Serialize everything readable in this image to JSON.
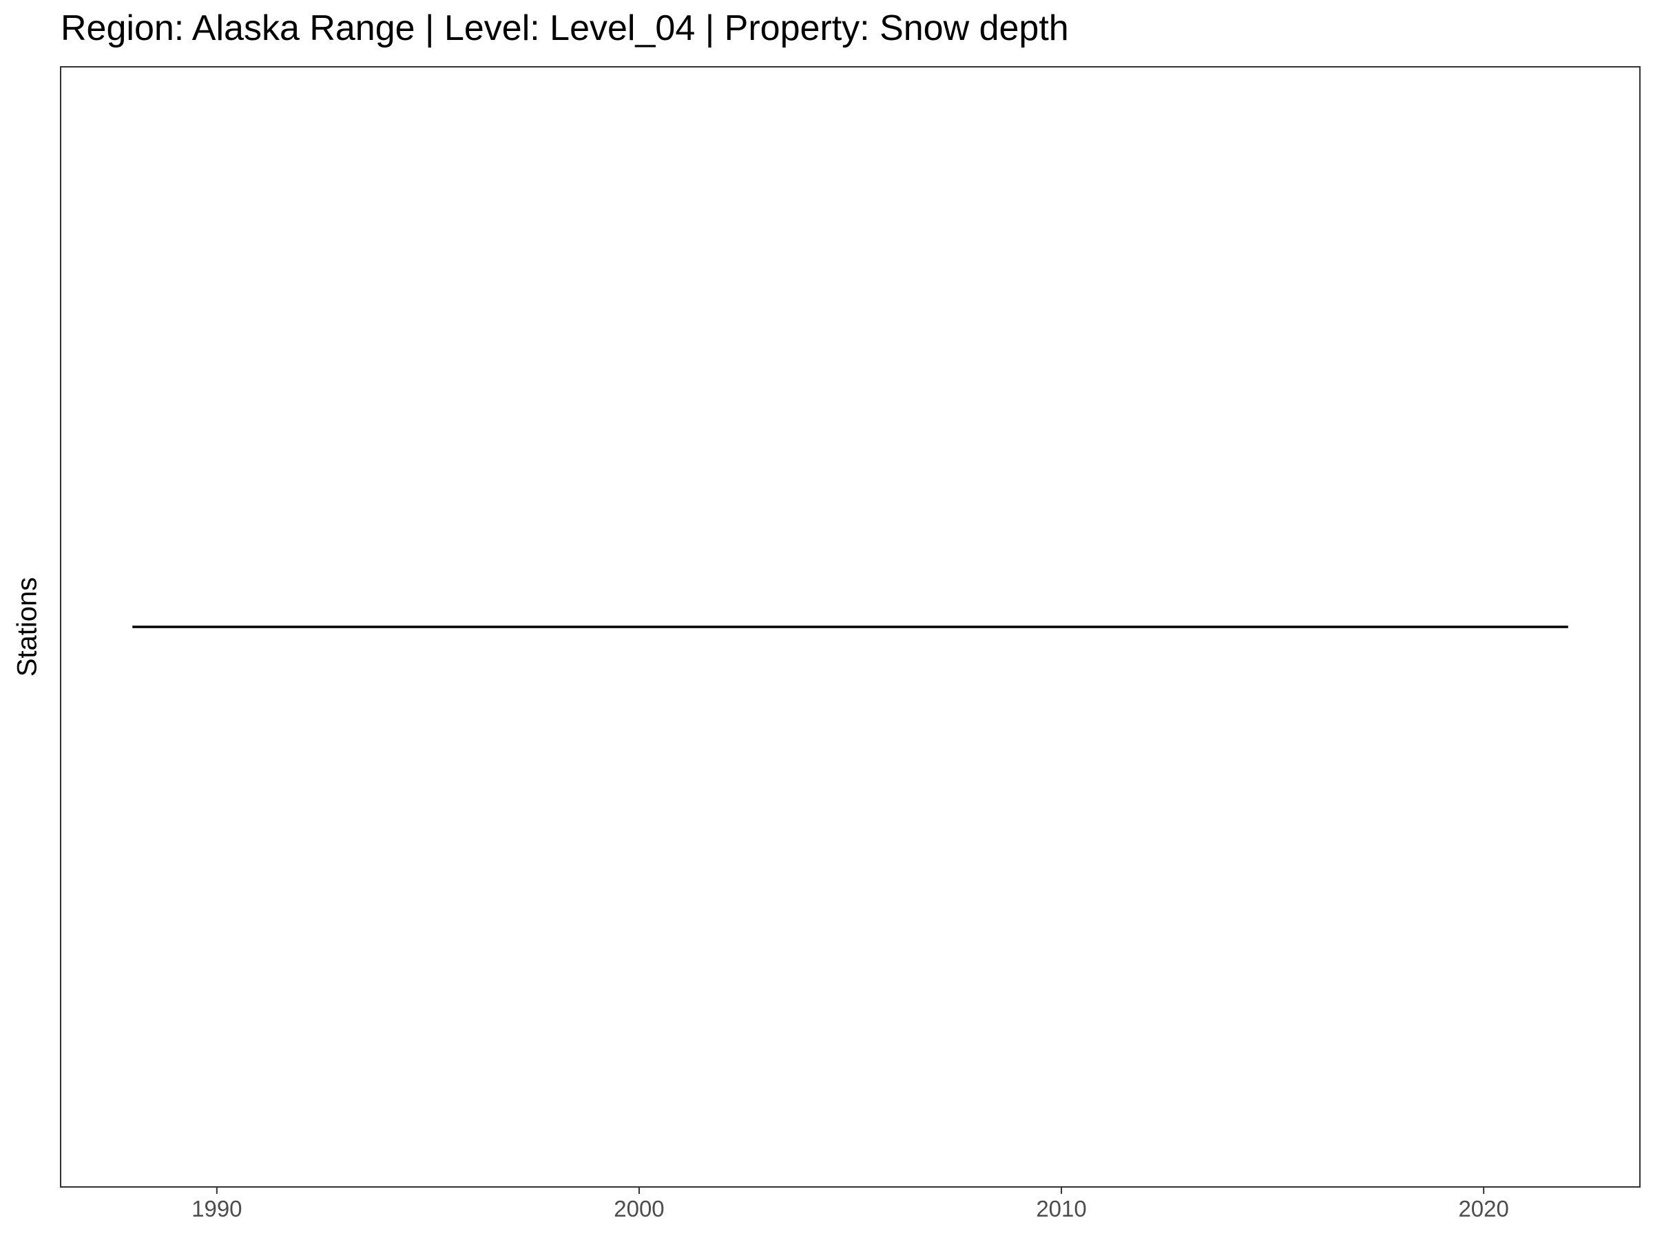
{
  "chart_data": {
    "type": "line",
    "title": "Region: Alaska Range | Level: Level_04 | Property: Snow depth",
    "xlabel": "",
    "ylabel": "Stations",
    "x_ticks": [
      1990,
      2000,
      2010,
      2020
    ],
    "xlim": [
      1986.3,
      2023.7
    ],
    "y_categories": [
      ""
    ],
    "grid": false,
    "legend": "none",
    "series": [
      {
        "x": [
          1988,
          2022
        ],
        "y": [
          "",
          ""
        ],
        "color": "#000000"
      }
    ]
  }
}
